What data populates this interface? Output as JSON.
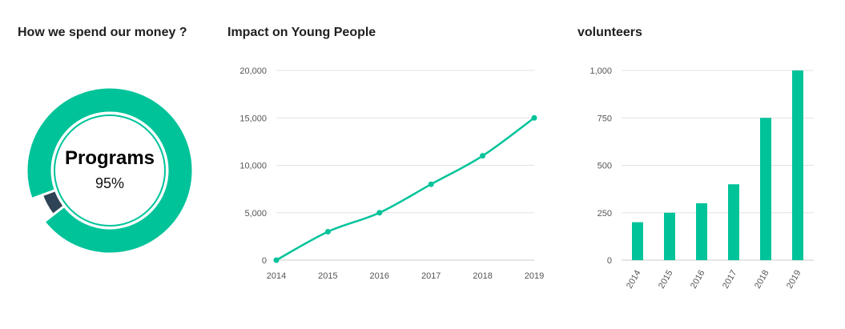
{
  "colors": {
    "accent": "#00c39a",
    "secondary": "#2f4356",
    "grid": "#e2e2e2",
    "axis": "#cccccc"
  },
  "donut": {
    "title": "How we spend our money ?",
    "center_label": "Programs",
    "center_value": "95%"
  },
  "chart_data": [
    {
      "type": "pie",
      "title": "How we spend our money ?",
      "categories": [
        "Programs",
        ""
      ],
      "values": [
        95,
        5
      ],
      "center_label": "Programs",
      "center_value": "95%"
    },
    {
      "type": "line",
      "title": "Impact on Young People",
      "x": [
        "2014",
        "2015",
        "2016",
        "2017",
        "2018",
        "2019"
      ],
      "values": [
        0,
        3000,
        5000,
        8000,
        11000,
        15000
      ],
      "ylim": [
        0,
        20000
      ],
      "yticks": [
        "0",
        "5,000",
        "10,000",
        "15,000",
        "20,000"
      ],
      "grid": true
    },
    {
      "type": "bar",
      "title": "volunteers",
      "categories": [
        "2014",
        "2015",
        "2016",
        "2017",
        "2018",
        "2019"
      ],
      "values": [
        200,
        250,
        300,
        400,
        750,
        1000
      ],
      "ylim": [
        0,
        1000
      ],
      "yticks": [
        "0",
        "250",
        "500",
        "750",
        "1,000"
      ],
      "grid": true
    }
  ]
}
